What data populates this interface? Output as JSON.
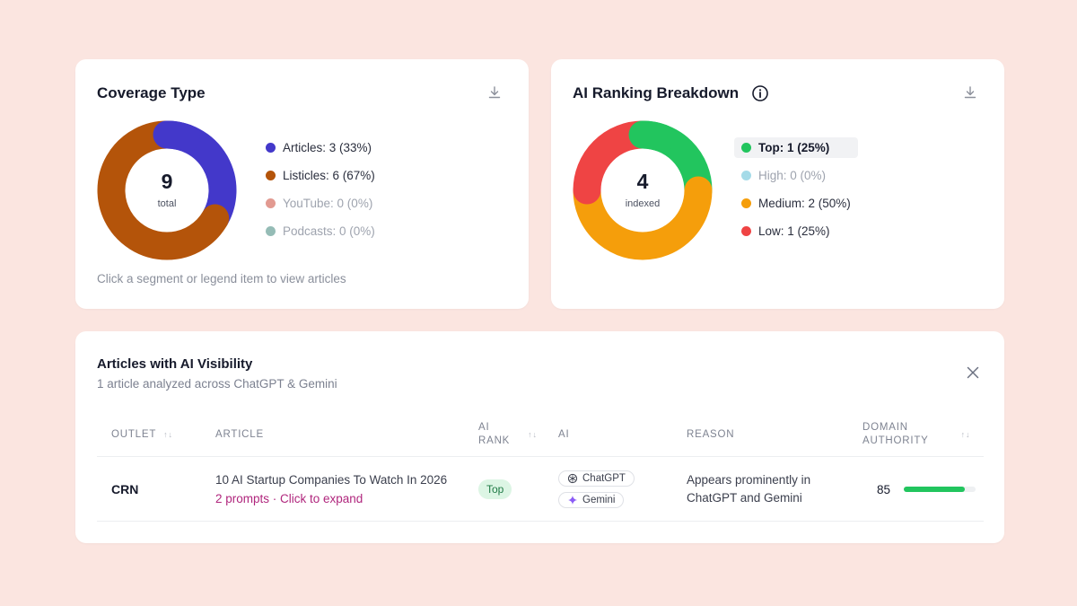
{
  "coverage": {
    "title": "Coverage Type",
    "total": "9",
    "total_label": "total",
    "hint": "Click a segment or legend item to view articles",
    "legend": [
      {
        "label": "Articles: 3 (33%)",
        "value": 3,
        "color": "#4338ca",
        "muted": false
      },
      {
        "label": "Listicles: 6 (67%)",
        "value": 6,
        "color": "#b4540a",
        "muted": false
      },
      {
        "label": "YouTube: 0 (0%)",
        "value": 0,
        "color": "#e29a91",
        "muted": true
      },
      {
        "label": "Podcasts: 0 (0%)",
        "value": 0,
        "color": "#95bcb6",
        "muted": true
      }
    ]
  },
  "ranking": {
    "title": "AI Ranking Breakdown",
    "total": "4",
    "total_label": "indexed",
    "legend": [
      {
        "label": "Top: 1 (25%)",
        "value": 1,
        "color": "#22c55e",
        "active": true
      },
      {
        "label": "High: 0 (0%)",
        "value": 0,
        "color": "#a5dbe8",
        "muted": true
      },
      {
        "label": "Medium: 2 (50%)",
        "value": 2,
        "color": "#f59e0b",
        "muted": false
      },
      {
        "label": "Low: 1 (25%)",
        "value": 1,
        "color": "#ef4444",
        "muted": false
      }
    ]
  },
  "articles": {
    "title": "Articles with AI Visibility",
    "subtitle": "1 article analyzed across ChatGPT & Gemini",
    "columns": {
      "outlet": "OUTLET",
      "article": "ARTICLE",
      "ai_rank_1": "AI",
      "ai_rank_2": "RANK",
      "ai": "AI",
      "reason": "REASON",
      "da_1": "DOMAIN",
      "da_2": "AUTHORITY"
    },
    "rows": [
      {
        "outlet": "CRN",
        "article_title": "10 AI Startup Companies To Watch In 2026",
        "article_expand": "2 prompts · Click to expand",
        "rank": "Top",
        "ai_chips": [
          "ChatGPT",
          "Gemini"
        ],
        "reason": "Appears prominently in ChatGPT and Gemini",
        "domain_authority": 85
      }
    ]
  },
  "icons": {
    "download": "download-icon",
    "info": "info-icon",
    "close": "close-icon",
    "sort": "sort-icon",
    "chatgpt": "chatgpt-icon",
    "gemini": "gemini-sparkle-icon"
  }
}
